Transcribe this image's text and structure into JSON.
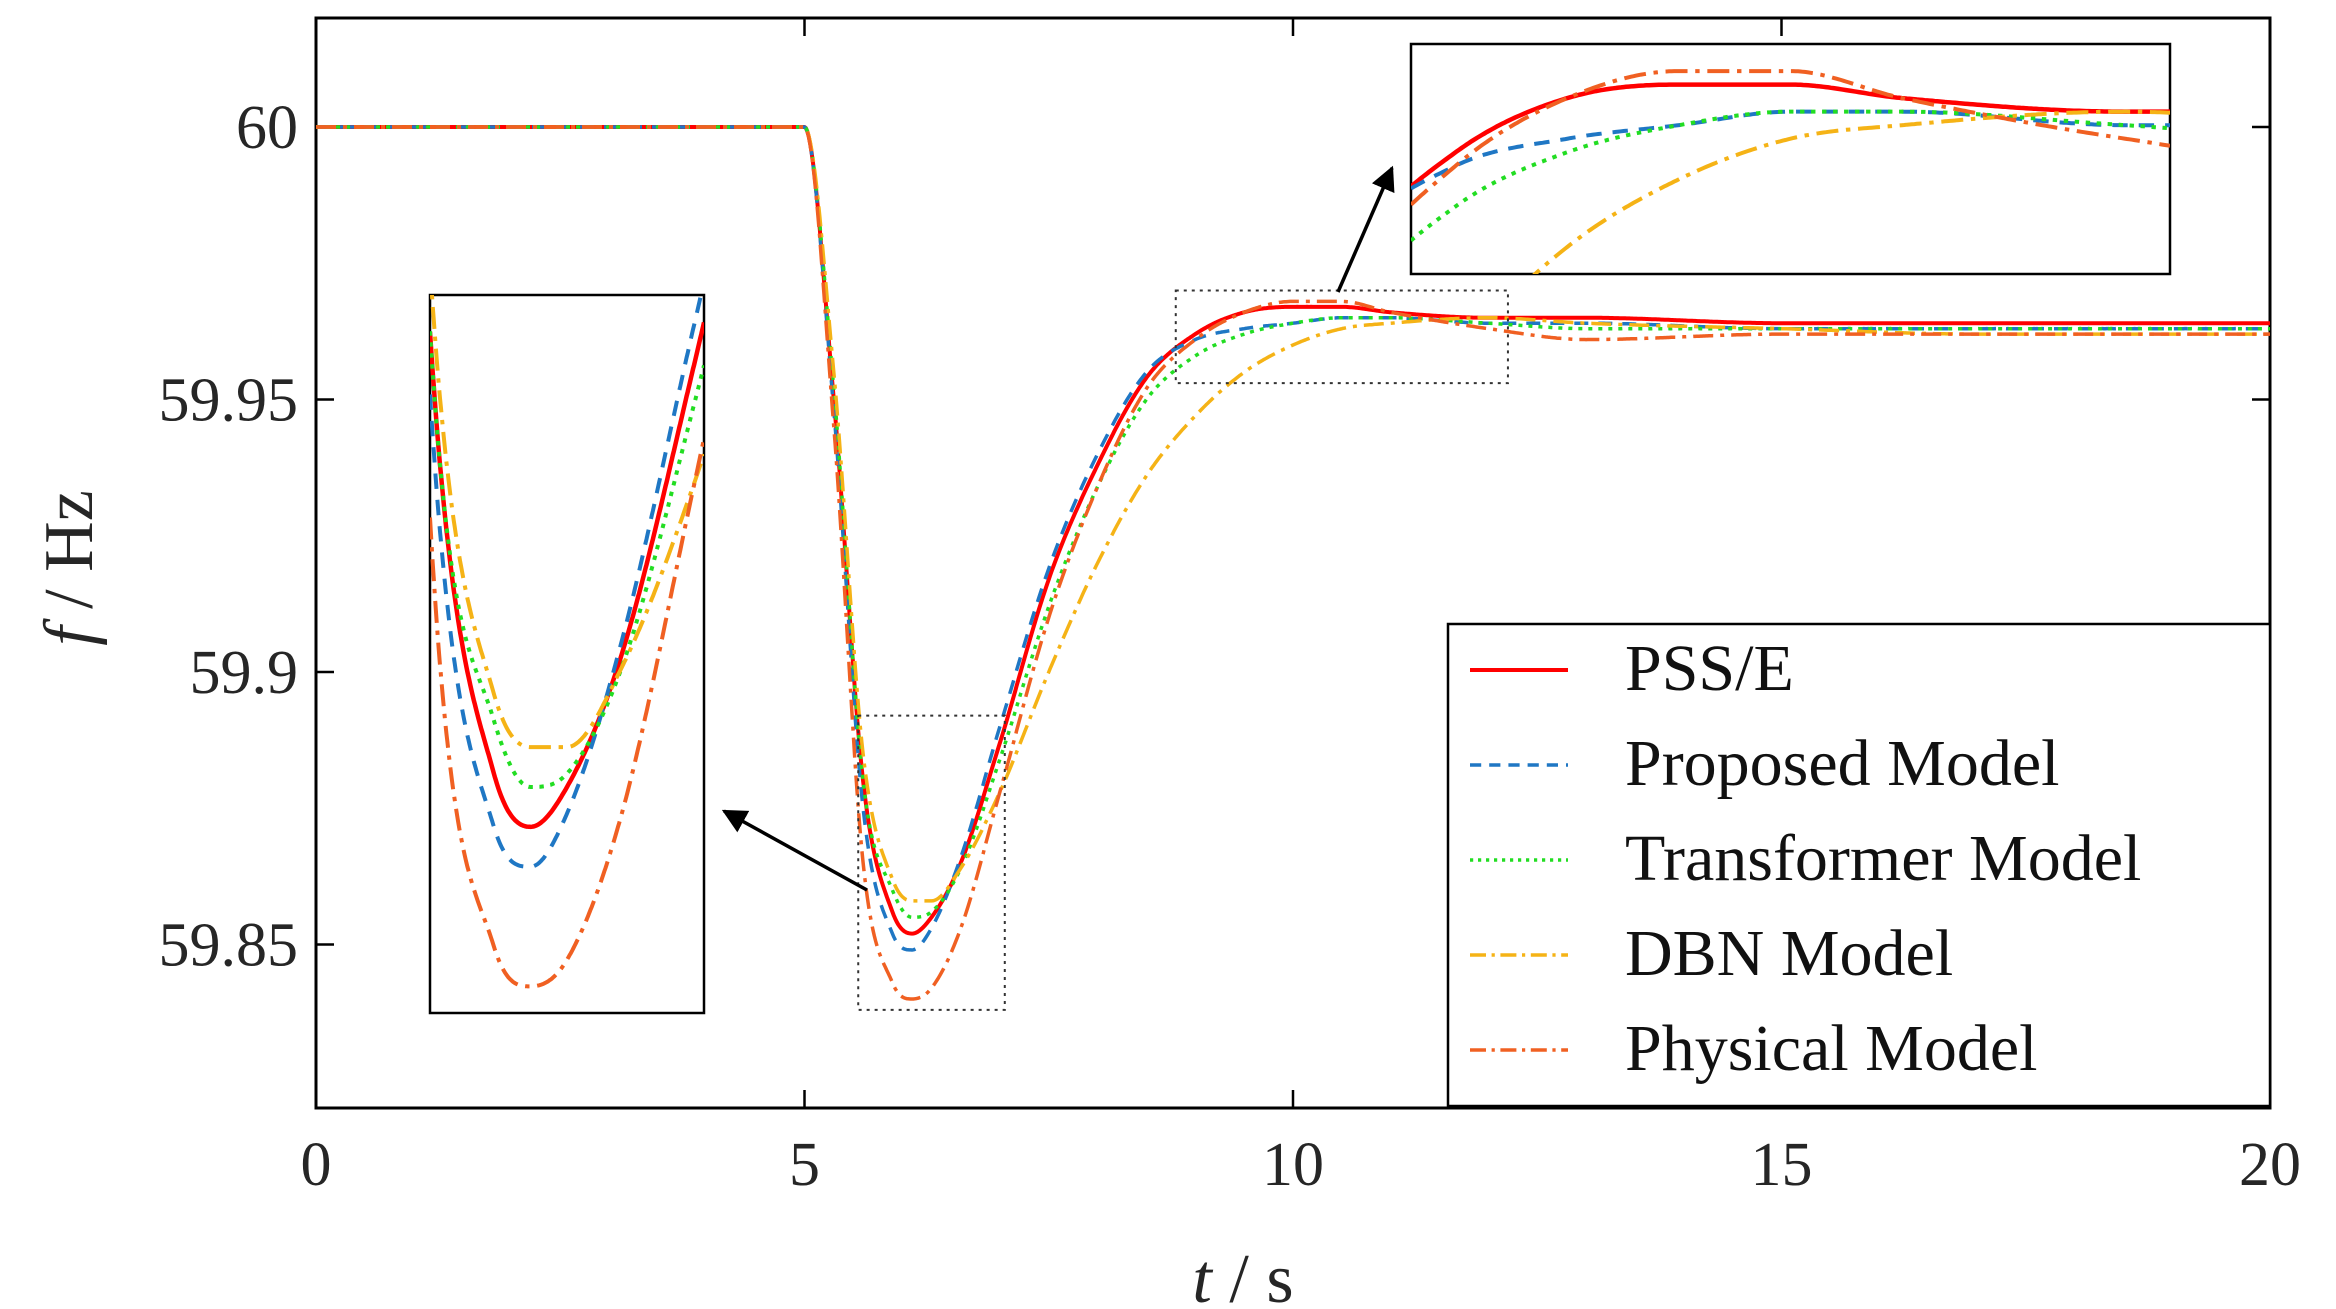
{
  "chart_data": {
    "type": "line",
    "title": "",
    "xlabel": {
      "var": "t",
      "unit": "s",
      "sep": " / "
    },
    "ylabel": {
      "var": "f",
      "unit": "Hz",
      "sep": " / "
    },
    "xlim": [
      0,
      20
    ],
    "ylim": [
      59.82,
      60.02
    ],
    "xticks": [
      0,
      5,
      10,
      15,
      20
    ],
    "xtick_labels": [
      "0",
      "5",
      "10",
      "15",
      "20"
    ],
    "yticks": [
      59.85,
      59.9,
      59.95,
      60
    ],
    "ytick_labels": [
      "59.85",
      "59.9",
      "59.95",
      "60"
    ],
    "grid": false,
    "legend_position": "bottom-right",
    "series": [
      {
        "name": "PSS/E",
        "color": "#ff0000",
        "style": "solid",
        "x": [
          0,
          5,
          5.3,
          5.6,
          5.9,
          6.1,
          6.3,
          6.6,
          7,
          7.5,
          8,
          8.5,
          9,
          9.5,
          10,
          10.5,
          11,
          12,
          13,
          15,
          17,
          20
        ],
        "y": [
          60,
          60,
          59.95,
          59.88,
          59.856,
          59.852,
          59.855,
          59.865,
          59.887,
          59.917,
          59.938,
          59.954,
          59.962,
          59.966,
          59.967,
          59.967,
          59.966,
          59.965,
          59.965,
          59.964,
          59.964,
          59.964
        ]
      },
      {
        "name": "Proposed Model",
        "color": "#1f77c4",
        "style": "dashed",
        "x": [
          0,
          5,
          5.3,
          5.6,
          5.9,
          6.1,
          6.3,
          6.6,
          7,
          7.5,
          8,
          8.5,
          9,
          9.5,
          10,
          10.5,
          11,
          12,
          13,
          15,
          17,
          20
        ],
        "y": [
          60,
          60,
          59.948,
          59.875,
          59.852,
          59.849,
          59.853,
          59.866,
          59.89,
          59.919,
          59.94,
          59.955,
          59.961,
          59.963,
          59.964,
          59.965,
          59.965,
          59.964,
          59.964,
          59.963,
          59.963,
          59.963
        ]
      },
      {
        "name": "Transformer Model",
        "color": "#22dd22",
        "style": "dotted",
        "x": [
          0,
          5,
          5.3,
          5.6,
          5.9,
          6.1,
          6.3,
          6.6,
          7,
          7.5,
          8,
          8.5,
          9,
          9.5,
          10,
          10.5,
          11,
          12,
          13,
          15,
          17,
          20
        ],
        "y": [
          60,
          60,
          59.952,
          59.88,
          59.86,
          59.855,
          59.856,
          59.864,
          59.884,
          59.912,
          59.934,
          59.95,
          59.958,
          59.962,
          59.964,
          59.965,
          59.965,
          59.964,
          59.963,
          59.963,
          59.963,
          59.963
        ]
      },
      {
        "name": "DBN Model",
        "color": "#f5b316",
        "style": "dashdot",
        "x": [
          0,
          5,
          5.3,
          5.6,
          5.9,
          6.1,
          6.3,
          6.6,
          7,
          7.5,
          8,
          8.5,
          9,
          9.5,
          10,
          10.5,
          11,
          12,
          13,
          15,
          17,
          20
        ],
        "y": [
          60,
          60,
          59.955,
          59.885,
          59.862,
          59.858,
          59.858,
          59.864,
          59.878,
          59.9,
          59.92,
          59.936,
          59.947,
          59.955,
          59.96,
          59.963,
          59.964,
          59.965,
          59.964,
          59.963,
          59.962,
          59.962
        ]
      },
      {
        "name": "Physical Model",
        "color": "#f06022",
        "style": "dashdot",
        "x": [
          0,
          5,
          5.3,
          5.6,
          5.9,
          6.1,
          6.3,
          6.6,
          7,
          7.5,
          8,
          8.5,
          9,
          9.5,
          10,
          10.5,
          11,
          12,
          13,
          15,
          17,
          20
        ],
        "y": [
          60,
          60,
          59.945,
          59.865,
          59.843,
          59.84,
          59.842,
          59.853,
          59.878,
          59.91,
          59.934,
          59.952,
          59.961,
          59.966,
          59.968,
          59.968,
          59.966,
          59.963,
          59.961,
          59.962,
          59.962,
          59.962
        ]
      }
    ],
    "insets": [
      {
        "name": "trough-zoom",
        "xlim": [
          5.55,
          7.05
        ],
        "ylim": [
          59.838,
          59.892
        ]
      },
      {
        "name": "peak-zoom",
        "xlim": [
          8.8,
          12.2
        ],
        "ylim": [
          59.953,
          59.97
        ]
      }
    ]
  }
}
